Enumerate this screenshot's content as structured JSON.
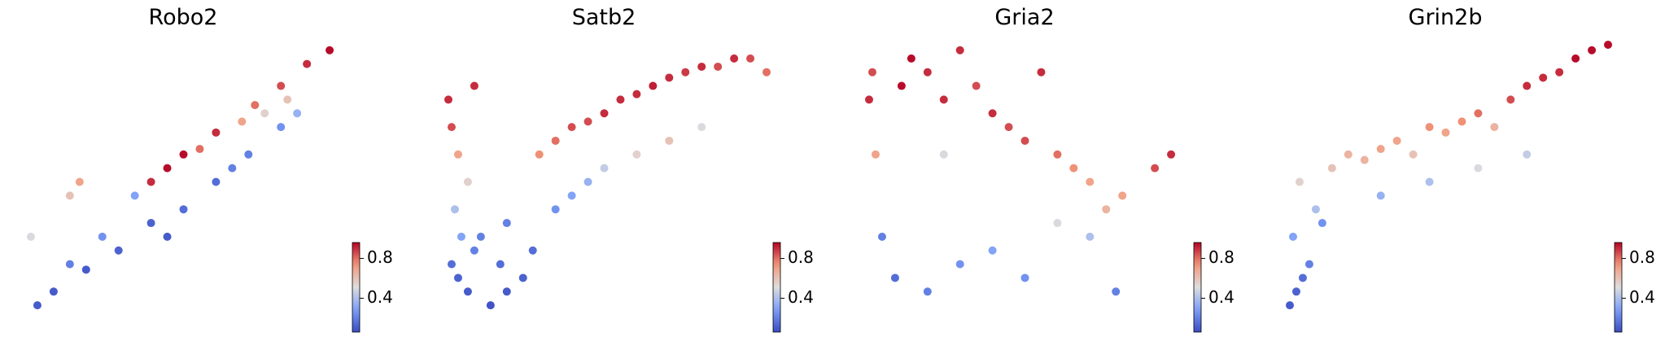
{
  "chart_data": [
    {
      "type": "scatter",
      "title": "Robo2",
      "colormap": "coolwarm",
      "x": [
        95,
        88,
        80,
        72,
        60,
        50,
        45,
        40,
        55,
        68,
        75,
        82,
        70,
        80,
        60,
        50,
        40,
        30,
        20,
        10,
        5,
        15,
        25,
        35,
        65,
        85,
        45,
        3,
        15,
        18
      ],
      "y": [
        98,
        93,
        85,
        78,
        68,
        60,
        55,
        50,
        62,
        72,
        75,
        80,
        60,
        70,
        50,
        40,
        35,
        25,
        18,
        10,
        5,
        20,
        30,
        45,
        55,
        75,
        30,
        30,
        45,
        50
      ],
      "c": [
        0.95,
        0.9,
        0.85,
        0.8,
        0.9,
        0.95,
        0.95,
        0.9,
        0.8,
        0.7,
        0.55,
        0.6,
        0.2,
        0.25,
        0.15,
        0.15,
        0.12,
        0.12,
        0.1,
        0.1,
        0.1,
        0.2,
        0.25,
        0.3,
        0.2,
        0.35,
        0.1,
        0.5,
        0.6,
        0.7
      ],
      "xlim": [
        0,
        100
      ],
      "ylim": [
        0,
        100
      ],
      "clim": [
        0.06,
        0.96
      ],
      "cticks": [
        0.4,
        0.8
      ]
    },
    {
      "type": "scatter",
      "title": "Satb2",
      "colormap": "coolwarm",
      "x": [
        2,
        3,
        5,
        8,
        4,
        6,
        10,
        5,
        3,
        8,
        15,
        20,
        25,
        18,
        12,
        30,
        35,
        40,
        45,
        50,
        55,
        60,
        65,
        70,
        75,
        80,
        85,
        90,
        95,
        100,
        40,
        50,
        60,
        70,
        80,
        35,
        45,
        20,
        28,
        10
      ],
      "y": [
        80,
        70,
        60,
        50,
        40,
        30,
        25,
        15,
        20,
        10,
        5,
        10,
        15,
        20,
        30,
        60,
        65,
        70,
        72,
        75,
        80,
        82,
        85,
        88,
        90,
        92,
        92,
        95,
        95,
        90,
        45,
        55,
        60,
        65,
        70,
        40,
        50,
        35,
        25,
        85
      ],
      "c": [
        0.9,
        0.85,
        0.7,
        0.55,
        0.4,
        0.3,
        0.2,
        0.12,
        0.15,
        0.1,
        0.08,
        0.1,
        0.12,
        0.15,
        0.2,
        0.75,
        0.8,
        0.85,
        0.85,
        0.9,
        0.9,
        0.9,
        0.92,
        0.9,
        0.88,
        0.9,
        0.85,
        0.9,
        0.85,
        0.8,
        0.3,
        0.45,
        0.55,
        0.6,
        0.5,
        0.25,
        0.35,
        0.2,
        0.15,
        0.9
      ],
      "xlim": [
        0,
        100
      ],
      "ylim": [
        0,
        100
      ],
      "clim": [
        0.06,
        0.96
      ],
      "cticks": [
        0.4,
        0.8
      ]
    },
    {
      "type": "scatter",
      "title": "Gria2",
      "colormap": "coolwarm",
      "x": [
        12,
        15,
        20,
        25,
        30,
        35,
        40,
        45,
        50,
        55,
        60,
        65,
        70,
        75,
        80,
        90,
        95,
        2,
        4,
        6,
        10,
        20,
        30,
        40,
        50,
        60,
        70,
        78,
        3,
        25
      ],
      "y": [
        85,
        95,
        90,
        80,
        98,
        85,
        75,
        70,
        65,
        90,
        60,
        55,
        50,
        40,
        45,
        55,
        60,
        80,
        60,
        30,
        15,
        10,
        20,
        25,
        15,
        35,
        30,
        10,
        90,
        60
      ],
      "c": [
        0.95,
        0.95,
        0.9,
        0.9,
        0.9,
        0.85,
        0.9,
        0.85,
        0.85,
        0.9,
        0.8,
        0.75,
        0.7,
        0.65,
        0.7,
        0.85,
        0.9,
        0.9,
        0.7,
        0.2,
        0.15,
        0.2,
        0.25,
        0.3,
        0.25,
        0.5,
        0.4,
        0.2,
        0.85,
        0.5
      ],
      "xlim": [
        0,
        100
      ],
      "ylim": [
        0,
        100
      ],
      "clim": [
        0.06,
        0.96
      ],
      "cticks": [
        0.4,
        0.8
      ]
    },
    {
      "type": "scatter",
      "title": "Grin2b",
      "colormap": "coolwarm",
      "x": [
        2,
        4,
        6,
        3,
        8,
        10,
        5,
        15,
        20,
        25,
        30,
        35,
        40,
        45,
        50,
        55,
        60,
        65,
        70,
        75,
        80,
        85,
        90,
        95,
        100,
        30,
        45,
        60,
        75,
        12
      ],
      "y": [
        5,
        10,
        15,
        30,
        20,
        40,
        50,
        55,
        60,
        58,
        62,
        65,
        60,
        70,
        68,
        72,
        75,
        70,
        80,
        85,
        88,
        90,
        95,
        98,
        100,
        45,
        50,
        55,
        60,
        35
      ],
      "c": [
        0.1,
        0.12,
        0.15,
        0.3,
        0.2,
        0.4,
        0.55,
        0.6,
        0.65,
        0.65,
        0.7,
        0.7,
        0.6,
        0.75,
        0.7,
        0.75,
        0.8,
        0.65,
        0.85,
        0.9,
        0.9,
        0.9,
        0.95,
        0.95,
        0.95,
        0.35,
        0.4,
        0.5,
        0.45,
        0.25
      ],
      "xlim": [
        0,
        100
      ],
      "ylim": [
        0,
        100
      ],
      "clim": [
        0.06,
        0.96
      ],
      "cticks": [
        0.4,
        0.8
      ]
    }
  ]
}
